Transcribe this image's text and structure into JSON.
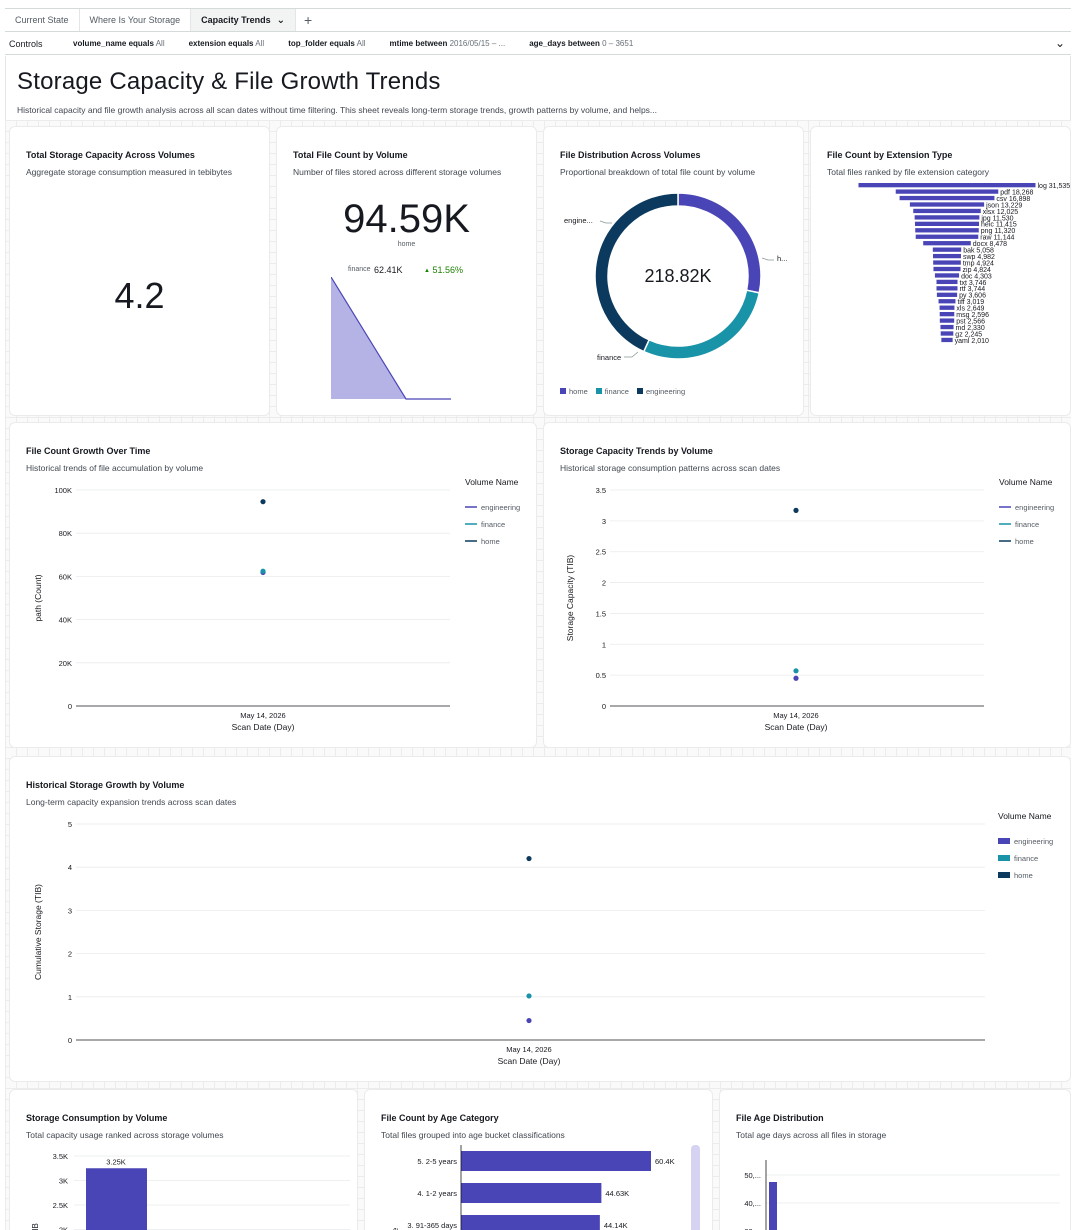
{
  "tabs": [
    {
      "label": "Current State"
    },
    {
      "label": "Where Is Your Storage"
    },
    {
      "label": "Capacity Trends"
    }
  ],
  "controls": {
    "label": "Controls",
    "filters": [
      {
        "field": "volume_name equals",
        "value": "All"
      },
      {
        "field": "extension equals",
        "value": "All"
      },
      {
        "field": "top_folder equals",
        "value": "All"
      },
      {
        "field": "mtime between",
        "value": "2016/05/15 – ..."
      },
      {
        "field": "age_days between",
        "value": "0 – 3651"
      }
    ]
  },
  "page": {
    "title": "Storage Capacity & File Growth Trends",
    "description": "Historical capacity and file growth analysis across all scan dates without time filtering. This sheet reveals long-term storage trends, growth patterns by volume, and helps..."
  },
  "colors": {
    "engineering": "#4a45b6",
    "finance": "#1893a8",
    "home": "#0b3a5e"
  },
  "kpi_capacity": {
    "title": "Total Storage Capacity Across Volumes",
    "subtitle": "Aggregate storage consumption measured in tebibytes",
    "value": "4.2"
  },
  "kpi_files": {
    "title": "Total File Count by Volume",
    "subtitle": "Number of files stored across different storage volumes",
    "value": "94.59K",
    "value_label": "home",
    "compare_label": "finance",
    "compare_value": "62.41K",
    "change": "51.56%"
  },
  "donut": {
    "title": "File Distribution Across Volumes",
    "subtitle": "Proportional breakdown of total file count by volume",
    "center": "218.82K",
    "label_engineering": "engine...",
    "label_home": "h...",
    "label_finance": "finance",
    "legend": [
      "home",
      "finance",
      "engineering"
    ]
  },
  "ext": {
    "title": "File Count by Extension Type",
    "subtitle": "Total files ranked by file extension category"
  },
  "growth": {
    "title": "File Count Growth Over Time",
    "subtitle": "Historical trends of file accumulation by volume",
    "legend_title": "Volume Name",
    "legend": [
      "engineering",
      "finance",
      "home"
    ]
  },
  "capacity_trends": {
    "title": "Storage Capacity Trends by Volume",
    "subtitle": "Historical storage consumption patterns across scan dates",
    "legend_title": "Volume Name",
    "legend": [
      "engineering",
      "finance",
      "home"
    ]
  },
  "historical": {
    "title": "Historical Storage Growth by Volume",
    "subtitle": "Long-term capacity expansion trends across scan dates",
    "legend_title": "Volume Name",
    "legend": [
      "engineering",
      "finance",
      "home"
    ]
  },
  "consumption": {
    "title": "Storage Consumption by Volume",
    "subtitle": "Total capacity usage ranked across storage volumes"
  },
  "age_category": {
    "title": "File Count by Age Category",
    "subtitle": "Total files grouped into age bucket classifications"
  },
  "age_dist": {
    "title": "File Age Distribution",
    "subtitle": "Total age days across all files in storage"
  },
  "chart_data": [
    {
      "id": "kpi_trend",
      "type": "area",
      "note": "sparkline",
      "values": [
        1,
        0,
        0
      ]
    },
    {
      "id": "donut",
      "type": "pie",
      "categories": [
        "home",
        "finance",
        "engineering"
      ],
      "values": [
        94.59,
        62.41,
        61.82
      ],
      "unit": "K files"
    },
    {
      "id": "ext",
      "type": "bar",
      "orientation": "horizontal",
      "categories": [
        "log",
        "pdf",
        "csv",
        "json",
        "xlsx",
        "jpg",
        "heic",
        "png",
        "raw",
        "docx",
        "bak",
        "swp",
        "tmp",
        "zip",
        "doc",
        "txt",
        "rtf",
        "py",
        "tiff",
        "xls",
        "msg",
        "pst",
        "md",
        "gz",
        "yaml"
      ],
      "values": [
        31535,
        18268,
        16898,
        13229,
        12025,
        11530,
        11415,
        11320,
        11144,
        8478,
        5058,
        4982,
        4924,
        4824,
        4303,
        3746,
        3744,
        3606,
        3019,
        2649,
        2596,
        2566,
        2330,
        2245,
        2010
      ]
    },
    {
      "id": "growth",
      "type": "scatter",
      "title": "File Count Growth Over Time",
      "xlabel": "Scan Date (Day)",
      "ylabel": "path (Count)",
      "x": [
        "May 14, 2026"
      ],
      "ylim": [
        0,
        100000
      ],
      "yticks": [
        "0",
        "20K",
        "40K",
        "60K",
        "80K",
        "100K"
      ],
      "series": [
        {
          "name": "engineering",
          "values": [
            61820
          ]
        },
        {
          "name": "finance",
          "values": [
            62410
          ]
        },
        {
          "name": "home",
          "values": [
            94590
          ]
        }
      ]
    },
    {
      "id": "capacity_trends",
      "type": "scatter",
      "title": "Storage Capacity Trends by Volume",
      "xlabel": "Scan Date (Day)",
      "ylabel": "Storage Capacity (TIB)",
      "x": [
        "May 14, 2026"
      ],
      "ylim": [
        0,
        3.5
      ],
      "yticks": [
        "0",
        "0.5",
        "1",
        "1.5",
        "2",
        "2.5",
        "3",
        "3.5"
      ],
      "series": [
        {
          "name": "engineering",
          "values": [
            0.45
          ]
        },
        {
          "name": "finance",
          "values": [
            0.57
          ]
        },
        {
          "name": "home",
          "values": [
            3.17
          ]
        }
      ]
    },
    {
      "id": "historical",
      "type": "scatter",
      "title": "Historical Storage Growth by Volume",
      "xlabel": "Scan Date (Day)",
      "ylabel": "Cumulative Storage (TIB)",
      "x": [
        "May 14, 2026"
      ],
      "ylim": [
        0,
        5
      ],
      "yticks": [
        "0",
        "1",
        "2",
        "3",
        "4",
        "5"
      ],
      "series": [
        {
          "name": "engineering",
          "values": [
            0.45
          ]
        },
        {
          "name": "finance",
          "values": [
            1.02
          ]
        },
        {
          "name": "home",
          "values": [
            4.2
          ]
        }
      ]
    },
    {
      "id": "consumption",
      "type": "bar",
      "ylabel": "GIB",
      "yticks": [
        "2K",
        "2.5K",
        "3K",
        "3.5K"
      ],
      "ylim": [
        2000,
        3500
      ],
      "categories": [
        "home"
      ],
      "values": [
        3250
      ],
      "data_labels": [
        "3.25K"
      ]
    },
    {
      "id": "age_category",
      "type": "bar",
      "orientation": "horizontal",
      "categories": [
        "5. 2-5 years",
        "4. 1-2 years",
        "3. 91-365 days"
      ],
      "values": [
        60400,
        44630,
        44140
      ],
      "data_labels": [
        "60.4K",
        "44.63K",
        "44.14K"
      ]
    },
    {
      "id": "age_dist",
      "type": "bar",
      "yticks": [
        "30,...",
        "40,...",
        "50,..."
      ],
      "note": "partially visible"
    }
  ]
}
